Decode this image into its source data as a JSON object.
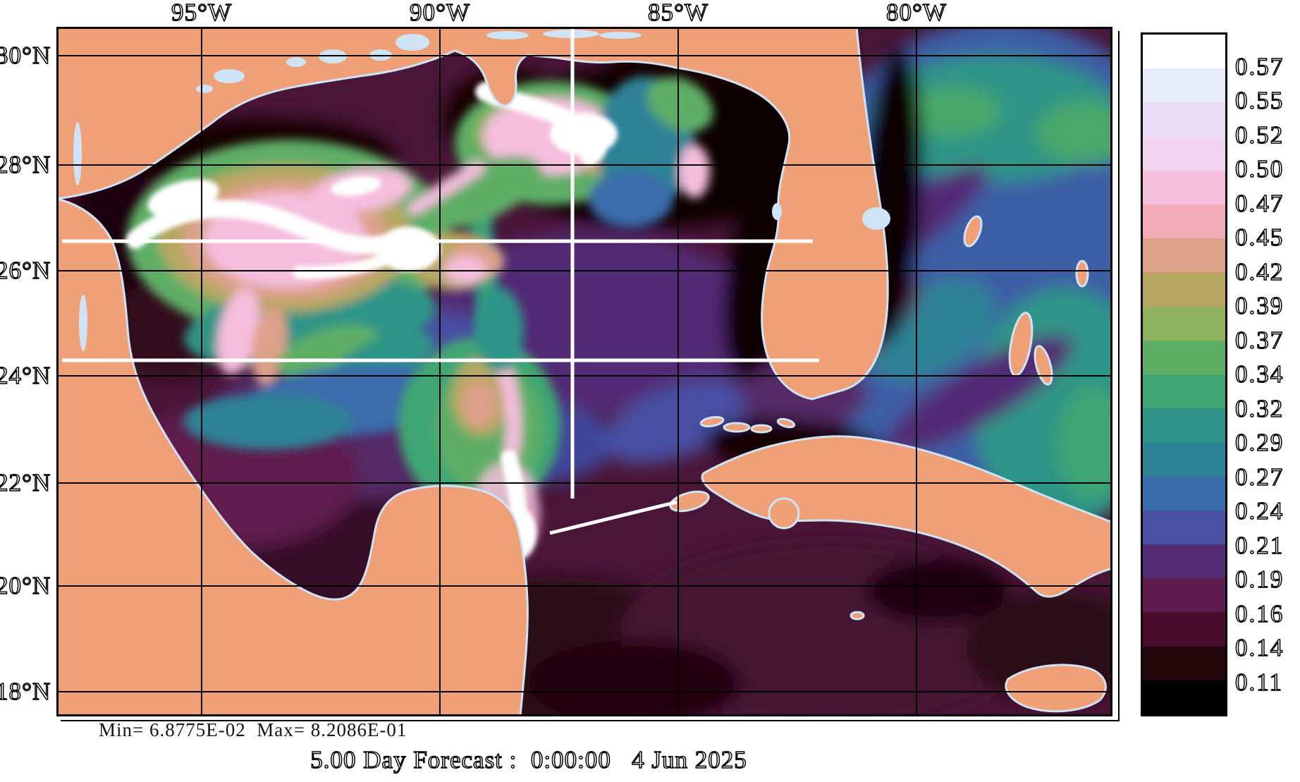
{
  "figure": {
    "kind": "ocean-model-forecast-map",
    "region": "Gulf of Mexico / NW Caribbean / SE U.S. coast",
    "background": "#ffffff"
  },
  "axes": {
    "lon_tick_labels": [
      "95°W",
      "90°W",
      "85°W",
      "80°W"
    ],
    "lat_tick_labels": [
      "30°N",
      "28°N",
      "26°N",
      "24°N",
      "22°N",
      "20°N",
      "18°N"
    ],
    "grid": "on"
  },
  "stats": {
    "min_label": "Min= 6.8775E-02",
    "max_label": "Max= 8.2086E-01"
  },
  "caption": "5.00 Day Forecast :  0:00:00   4 Jun 2025",
  "chart_data": {
    "type": "heatmap",
    "title": "5.00 Day Forecast :  0:00:00   4 Jun 2025",
    "xlabel": "",
    "ylabel": "",
    "x_tick_labels": [
      "95°W",
      "90°W",
      "85°W",
      "80°W"
    ],
    "y_tick_labels": [
      "30°N",
      "28°N",
      "26°N",
      "24°N",
      "22°N",
      "20°N",
      "18°N"
    ],
    "field_min": 0.068775,
    "field_max": 0.82086,
    "min_text": "Min= 6.8775E-02",
    "max_text": "Max= 8.2086E-01",
    "legend_position": "right",
    "colorbar": {
      "orientation": "vertical",
      "tick_labels": [
        "0.57",
        "0.55",
        "0.52",
        "0.50",
        "0.47",
        "0.45",
        "0.42",
        "0.39",
        "0.37",
        "0.34",
        "0.32",
        "0.29",
        "0.27",
        "0.24",
        "0.21",
        "0.19",
        "0.16",
        "0.14",
        "0.11"
      ],
      "levels": [
        0.11,
        0.14,
        0.16,
        0.19,
        0.21,
        0.24,
        0.27,
        0.29,
        0.32,
        0.34,
        0.37,
        0.39,
        0.42,
        0.45,
        0.47,
        0.5,
        0.52,
        0.55,
        0.57
      ],
      "colors_top_to_bottom": [
        "#ffffff",
        "#e7ebfa",
        "#eadef7",
        "#f0d4f0",
        "#f5bedd",
        "#f2abb8",
        "#dda089",
        "#b7a763",
        "#8eb25f",
        "#5fae66",
        "#3fa673",
        "#2f9487",
        "#2e8296",
        "#3a6cab",
        "#4a50a2",
        "#532c74",
        "#5e1b4e",
        "#490e2c",
        "#230609",
        "#010101"
      ]
    },
    "map_colors": {
      "land": "#efa077",
      "coast_fringe_and_lakes": "#cfe3f7",
      "deep_low_speed_water": "#0d0103"
    },
    "overlays": [
      "white horizontal section line near 26.5N from west boundary to Florida west shelf",
      "white horizontal section line near 24.3N from west boundary to ~81.5W",
      "white vertical section line near 87.2W from north boundary to ~21.5N",
      "white diagonal segment from Yucatan Channel jet toward western tip of Cuba"
    ],
    "features": [
      "bright white/pink/green anticyclonic eddy structure in NW Gulf (Loop Current eddy)",
      "bright white hook-shaped jet south of Mississippi delta near 88W 29N",
      "intense white jet through Yucatan Channel",
      "teal/green energetic Atlantic waters east of Florida and Bahamas",
      "near-black low-speed water over shelves: NE Gulf, Florida shelves, Texas shelf, around Cuba",
      "land masses: Texas/Mexico coast, Louisiana with Mississippi delta, Florida peninsula, Cuba, Isle of Youth, Yucatan peninsula, Jamaica, Bahamas cays"
    ]
  }
}
